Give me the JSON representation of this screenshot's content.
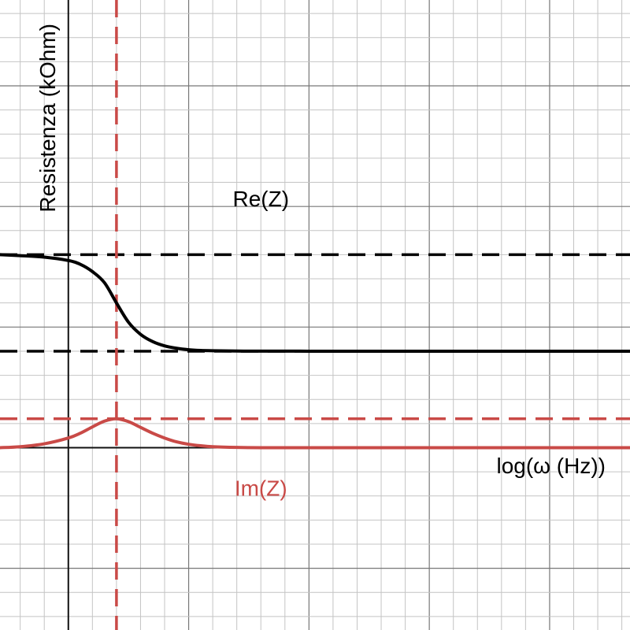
{
  "chart_data": {
    "type": "line",
    "xlabel": "log(ω (Hz))",
    "ylabel": "Resistenza (kOhm)",
    "xlim": [
      -1.42,
      11.67
    ],
    "ylim": [
      -3.78,
      9.28
    ],
    "grid": true,
    "series": [
      {
        "name": "Re(Z)",
        "color": "#000000",
        "style": "solid",
        "x": [
          -1.42,
          -1.0,
          -0.5,
          0.0,
          0.25,
          0.5,
          0.75,
          1.0,
          1.25,
          1.5,
          1.75,
          2.0,
          2.25,
          2.5,
          2.75,
          3.0,
          3.5,
          4.0,
          5.0,
          6.0,
          8.0,
          10.0,
          11.67
        ],
        "y": [
          4.0,
          3.98,
          3.95,
          3.88,
          3.8,
          3.65,
          3.42,
          3.0,
          2.6,
          2.35,
          2.2,
          2.11,
          2.06,
          2.03,
          2.015,
          2.01,
          2.003,
          2.001,
          2.0,
          2.0,
          2.0,
          2.0,
          2.0
        ]
      },
      {
        "name": "Im(Z)",
        "color": "#c94a47",
        "style": "solid",
        "x": [
          -1.42,
          -1.0,
          -0.5,
          0.0,
          0.25,
          0.5,
          0.75,
          1.0,
          1.25,
          1.5,
          1.75,
          2.0,
          2.25,
          2.5,
          2.75,
          3.0,
          3.5,
          4.0,
          5.0,
          6.0,
          8.0,
          10.0,
          11.67
        ],
        "y": [
          0.0,
          0.02,
          0.08,
          0.2,
          0.3,
          0.43,
          0.55,
          0.6,
          0.54,
          0.42,
          0.3,
          0.2,
          0.12,
          0.07,
          0.04,
          0.02,
          0.005,
          0.0,
          0.0,
          0.0,
          0.0,
          0.0,
          0.0
        ]
      }
    ],
    "reference_lines": [
      {
        "orientation": "horizontal",
        "value": 4.0,
        "color": "#000000",
        "style": "dashed"
      },
      {
        "orientation": "horizontal",
        "value": 2.0,
        "color": "#000000",
        "style": "dashed"
      },
      {
        "orientation": "horizontal",
        "value": 0.6,
        "color": "#c94a47",
        "style": "dashed"
      },
      {
        "orientation": "vertical",
        "value": 1.0,
        "color": "#c94a47",
        "style": "dashed"
      }
    ],
    "annotations": [
      {
        "text": "Re(Z)",
        "color": "#000000",
        "x": 4.0,
        "y": 5.0
      },
      {
        "text": "Im(Z)",
        "color": "#c94a47",
        "x": 4.0,
        "y": -1.0
      }
    ]
  }
}
